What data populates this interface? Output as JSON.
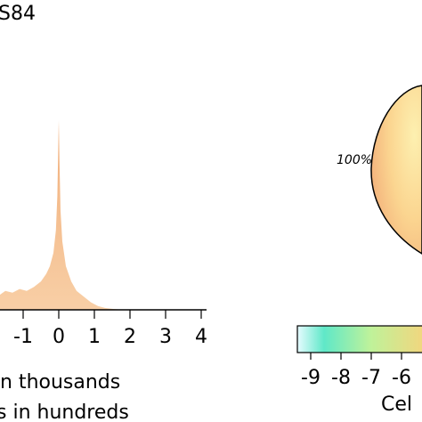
{
  "title_fragment": "S84",
  "left_axis": {
    "x_ticks": [
      "-1",
      "0",
      "1",
      "2",
      "3",
      "4"
    ],
    "label_line1": "n thousands",
    "label_line2": "s in hundreds"
  },
  "right_panel": {
    "pct_label": "100%",
    "colorbar_ticks": [
      "-9",
      "-8",
      "-7",
      "-6"
    ],
    "colorbar_label": "Cel"
  },
  "colors": {
    "fill_top": "#f1ae7a",
    "fill_bottom": "#f8cfa6",
    "pie_edge": "#f3b27c",
    "pie_center": "#fdf0b0",
    "cb_start": "#e6fbff",
    "cb_mid1": "#5fe8c8",
    "cb_mid2": "#bff29a",
    "cb_end": "#f9d27a"
  },
  "chart_data": {
    "type": "area",
    "title": "",
    "xlabel": "n thousands / s in hundreds",
    "ylabel": "",
    "xlim": [
      -1.65,
      4.15
    ],
    "ylim": [
      0,
      1
    ],
    "x": [
      -1.65,
      -1.5,
      -1.3,
      -1.1,
      -0.9,
      -0.7,
      -0.5,
      -0.35,
      -0.25,
      -0.15,
      -0.08,
      -0.04,
      -0.02,
      0.0,
      0.02,
      0.05,
      0.1,
      0.2,
      0.35,
      0.5,
      0.7,
      0.9,
      1.1,
      1.3,
      1.5,
      1.7,
      2.0
    ],
    "values": [
      0.08,
      0.1,
      0.09,
      0.11,
      0.1,
      0.12,
      0.15,
      0.19,
      0.23,
      0.3,
      0.42,
      0.6,
      0.8,
      1.0,
      0.78,
      0.52,
      0.36,
      0.23,
      0.15,
      0.1,
      0.07,
      0.04,
      0.02,
      0.01,
      0.005,
      0.002,
      0.0
    ]
  }
}
